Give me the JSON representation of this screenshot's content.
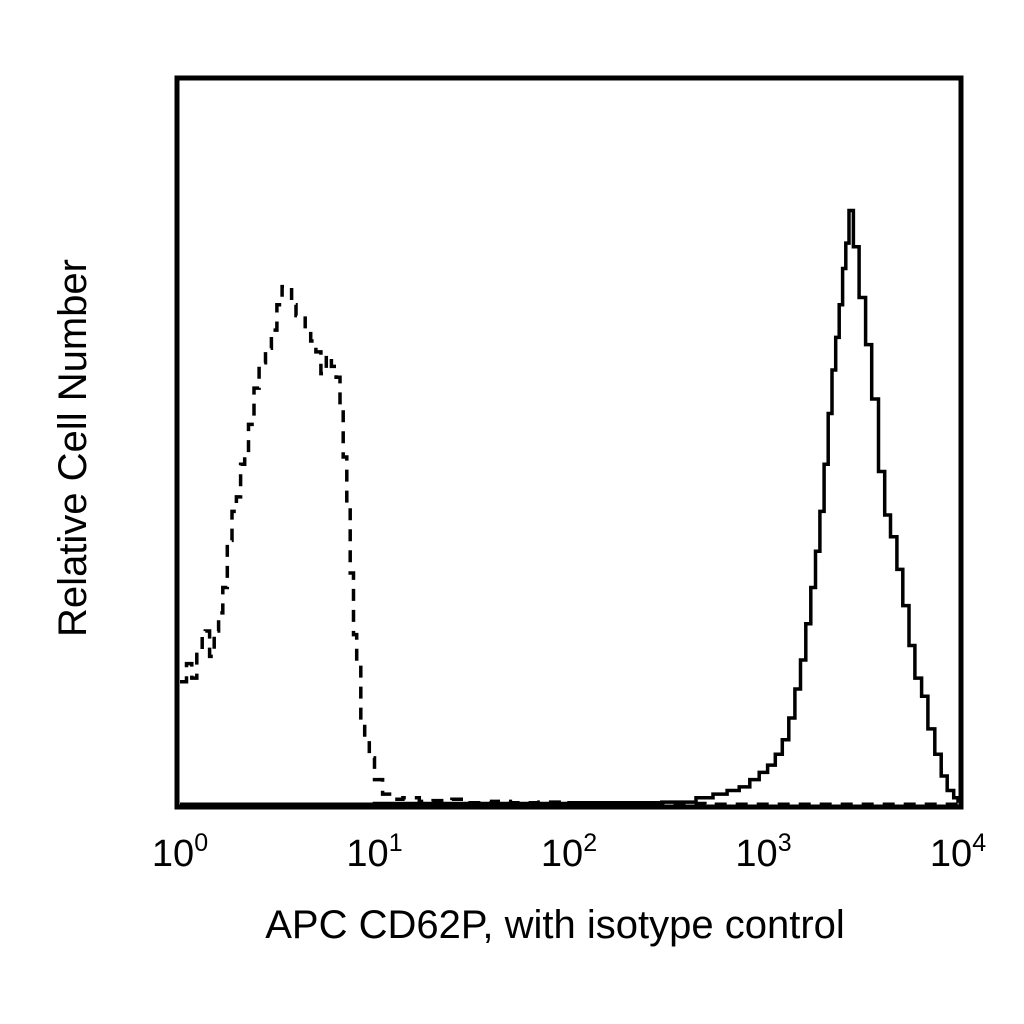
{
  "chart_data": {
    "type": "line",
    "title": "",
    "xlabel": "APC CD62P, with isotype control",
    "ylabel": "Relative Cell Number",
    "x_scale": "log",
    "xlim": [
      1,
      10000
    ],
    "ylim": [
      0,
      100
    ],
    "grid": false,
    "legend": "none",
    "x_ticks": [
      {
        "base": "10",
        "exp": "0",
        "value": 1
      },
      {
        "base": "10",
        "exp": "1",
        "value": 10
      },
      {
        "base": "10",
        "exp": "2",
        "value": 100
      },
      {
        "base": "10",
        "exp": "3",
        "value": 1000
      },
      {
        "base": "10",
        "exp": "4",
        "value": 10000
      }
    ],
    "series": [
      {
        "style": "dashed",
        "color": "#000000",
        "x": [
          1.0,
          1.08,
          1.15,
          1.22,
          1.3,
          1.35,
          1.42,
          1.5,
          1.58,
          1.66,
          1.75,
          1.85,
          1.95,
          2.05,
          2.15,
          2.25,
          2.4,
          2.55,
          2.75,
          2.95,
          3.15,
          3.35,
          3.55,
          3.75,
          3.95,
          4.15,
          4.4,
          4.7,
          5.0,
          5.3,
          5.65,
          6.0,
          6.35,
          6.65,
          6.9,
          7.2,
          7.5,
          7.8,
          8.1,
          8.5,
          8.9,
          9.4,
          10.0,
          11.0,
          12.5,
          14,
          17,
          20,
          25,
          30,
          40,
          50,
          70,
          100,
          150,
          200,
          300,
          500,
          1000,
          3000,
          10000
        ],
        "y": [
          17.0,
          19.5,
          17.5,
          21.5,
          23.5,
          24.0,
          20.5,
          24.0,
          26.5,
          30.0,
          36.5,
          40.5,
          42.5,
          47.0,
          48.5,
          52.5,
          57.5,
          61.0,
          63.0,
          65.5,
          69.0,
          71.5,
          71.5,
          69.0,
          67.5,
          67.5,
          65.5,
          64.0,
          62.5,
          59.5,
          62.0,
          60.5,
          59.0,
          55.5,
          48.0,
          41.5,
          32.0,
          23.5,
          19.5,
          11.5,
          9.0,
          6.5,
          3.5,
          1.5,
          0.8,
          1.0,
          0.5,
          0.6,
          0.8,
          0.3,
          0.5,
          0.3,
          0.4,
          0.3,
          0.3,
          0.2,
          0.2,
          0.1,
          0.1,
          0.1,
          0.1
        ]
      },
      {
        "style": "solid",
        "color": "#000000",
        "x": [
          1,
          10,
          100,
          300,
          450,
          550,
          650,
          750,
          850,
          950,
          1050,
          1150,
          1250,
          1350,
          1450,
          1550,
          1650,
          1750,
          1850,
          1950,
          2050,
          2150,
          2250,
          2350,
          2450,
          2550,
          2650,
          2750,
          2900,
          3100,
          3350,
          3600,
          3900,
          4200,
          4500,
          4850,
          5200,
          5600,
          6000,
          6500,
          7000,
          7600,
          8200,
          8800,
          9500,
          10000
        ],
        "y": [
          0.1,
          0.2,
          0.3,
          0.4,
          1.0,
          1.5,
          2.0,
          2.5,
          3.5,
          4.5,
          5.5,
          7.0,
          9.0,
          12.0,
          16.0,
          20.0,
          25.0,
          30.0,
          35.0,
          40.5,
          47.0,
          54.0,
          60.0,
          64.5,
          69.0,
          74.0,
          77.5,
          82.0,
          77.0,
          70.0,
          63.5,
          56.0,
          46.0,
          40.0,
          37.0,
          32.5,
          27.5,
          22.0,
          17.5,
          15.0,
          10.5,
          7.0,
          4.0,
          2.0,
          1.0,
          0.3
        ]
      }
    ]
  }
}
